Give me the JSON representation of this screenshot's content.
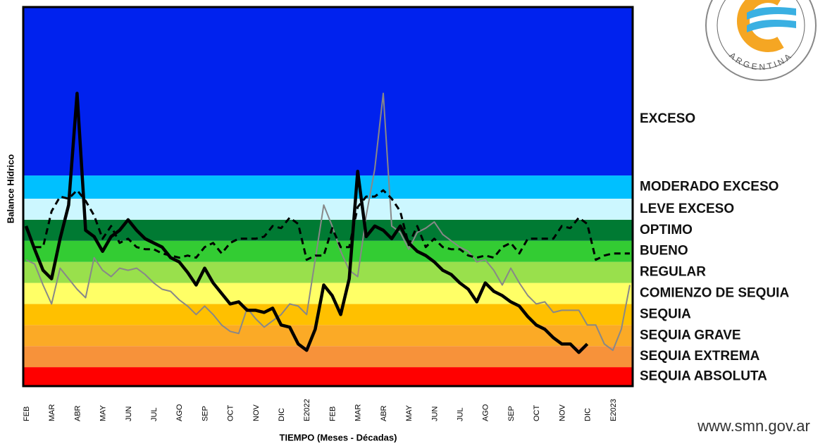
{
  "chart_data": {
    "type": "line",
    "y_axis_label": "Balance Hídrico",
    "x_axis_label": "TIEMPO (Meses - Décadas)",
    "ylim": [
      0,
      18
    ],
    "bands": [
      {
        "name": "SEQUIA ABSOLUTA",
        "color": "#ff0000",
        "from": 0,
        "to": 0.9
      },
      {
        "name": "SEQUIA EXTREMA",
        "color": "#f7923a",
        "from": 0.9,
        "to": 1.9
      },
      {
        "name": "SEQUIA GRAVE",
        "color": "#fbaa26",
        "from": 1.9,
        "to": 2.9
      },
      {
        "name": "SEQUIA",
        "color": "#ffc000",
        "from": 2.9,
        "to": 3.9
      },
      {
        "name": "COMIENZO DE SEQUIA",
        "color": "#ffff66",
        "from": 3.9,
        "to": 4.9
      },
      {
        "name": "REGULAR",
        "color": "#99e04c",
        "from": 4.9,
        "to": 5.9
      },
      {
        "name": "BUENO",
        "color": "#33cc33",
        "from": 5.9,
        "to": 6.9
      },
      {
        "name": "OPTIMO",
        "color": "#007a33",
        "from": 6.9,
        "to": 7.9
      },
      {
        "name": "LEVE EXCESO",
        "color": "#ccf7ff",
        "from": 7.9,
        "to": 8.9
      },
      {
        "name": "MODERADO EXCESO",
        "color": "#00c0ff",
        "from": 8.9,
        "to": 10
      },
      {
        "name": "EXCESO",
        "color": "#0022ee",
        "from": 10,
        "to": 18
      }
    ],
    "categories": [
      "FEB",
      null,
      null,
      "MAR",
      null,
      null,
      "ABR",
      null,
      null,
      "MAY",
      null,
      null,
      "JUN",
      null,
      null,
      "JUL",
      null,
      null,
      "AGO",
      null,
      null,
      "SEP",
      null,
      null,
      "OCT",
      null,
      null,
      "NOV",
      null,
      null,
      "DIC",
      null,
      null,
      "E2022",
      null,
      null,
      "FEB",
      null,
      null,
      "MAR",
      null,
      null,
      "ABR",
      null,
      null,
      "MAY",
      null,
      null,
      "JUN",
      null,
      null,
      "JUL",
      null,
      null,
      "AGO",
      null,
      null,
      "SEP",
      null,
      null,
      "OCT",
      null,
      null,
      "NOV",
      null,
      null,
      "DIC",
      null,
      null,
      "E2023",
      null,
      null
    ],
    "series": [
      {
        "color": "#888888",
        "dash": false,
        "width": 2,
        "values": [
          6.0,
          5.8,
          4.8,
          3.9,
          5.6,
          5.1,
          4.6,
          4.2,
          6.1,
          5.5,
          5.2,
          5.6,
          5.5,
          5.6,
          5.3,
          4.9,
          4.6,
          4.5,
          4.1,
          3.8,
          3.4,
          3.8,
          3.4,
          2.9,
          2.6,
          2.5,
          3.7,
          3.2,
          2.8,
          3.1,
          3.4,
          3.9,
          3.8,
          3.4,
          6.0,
          8.6,
          7.6,
          6.4,
          5.5,
          5.2,
          8.1,
          10.3,
          13.9,
          7.6,
          7.3,
          6.5,
          7.3,
          7.5,
          7.8,
          7.2,
          6.9,
          6.6,
          6.4,
          5.9,
          6.0,
          5.5,
          4.8,
          5.6,
          4.9,
          4.3,
          3.9,
          4.0,
          3.5,
          3.6,
          3.6,
          3.6,
          2.9,
          2.9,
          2.0,
          1.7,
          2.7,
          4.8
        ]
      },
      {
        "color": "#000000",
        "dash": true,
        "width": 3,
        "values": [
          7.5,
          6.6,
          6.6,
          8.3,
          9.0,
          8.9,
          9.3,
          8.8,
          8.1,
          7.0,
          7.6,
          6.8,
          7.0,
          6.6,
          6.5,
          6.5,
          6.3,
          6.2,
          6.1,
          6.2,
          6.1,
          6.6,
          6.8,
          6.3,
          6.8,
          7.0,
          7.0,
          7.0,
          7.1,
          7.6,
          7.5,
          8.0,
          7.7,
          6.0,
          6.2,
          6.2,
          7.5,
          6.6,
          6.6,
          8.5,
          9.0,
          9.0,
          9.3,
          8.9,
          8.3,
          6.7,
          7.6,
          6.6,
          7.0,
          6.6,
          6.5,
          6.5,
          6.2,
          6.1,
          6.2,
          6.1,
          6.6,
          6.8,
          6.3,
          7.0,
          7.0,
          7.0,
          7.0,
          7.6,
          7.5,
          8.0,
          7.7,
          6.0,
          6.2,
          6.3,
          6.3,
          6.3
        ]
      },
      {
        "color": "#000000",
        "dash": false,
        "width": 4.5,
        "values": [
          7.6,
          6.5,
          5.5,
          5.1,
          7.0,
          8.6,
          13.9,
          7.4,
          7.1,
          6.4,
          7.1,
          7.4,
          7.9,
          7.4,
          7.0,
          6.8,
          6.6,
          6.1,
          5.9,
          5.4,
          4.8,
          5.6,
          4.9,
          4.4,
          3.9,
          4.0,
          3.6,
          3.6,
          3.5,
          3.7,
          2.9,
          2.8,
          2.0,
          1.7,
          2.7,
          4.8,
          4.3,
          3.4,
          5.1,
          10.2,
          7.1,
          7.6,
          7.4,
          7.0,
          7.6,
          6.8,
          6.4,
          6.2,
          5.9,
          5.5,
          5.3,
          4.9,
          4.6,
          4.0,
          4.9,
          4.5,
          4.3,
          4.0,
          3.8,
          3.3,
          2.9,
          2.7,
          2.3,
          2.0,
          2.0,
          1.6,
          2.0,
          null,
          null,
          null,
          null,
          null
        ]
      }
    ]
  },
  "logo": {
    "text": "ARGENTINA"
  },
  "footer": {
    "url": "www.smn.gov.ar"
  }
}
